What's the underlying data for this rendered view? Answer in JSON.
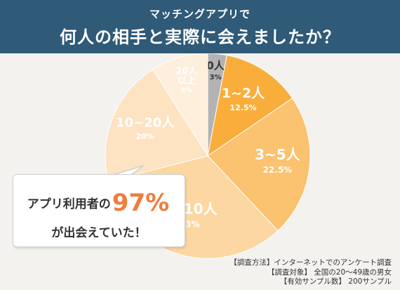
{
  "header": {
    "line1": "マッチングアプリで",
    "line2": "何人の相手と実際に会えましたか？"
  },
  "chart_data": {
    "type": "pie",
    "title": "何人の相手と実際に会えましたか？",
    "slices": [
      {
        "label": "0人",
        "value": 3,
        "pct_label": "3%",
        "color": "#b3b3b3",
        "text_color": "#333333"
      },
      {
        "label": "1~2人",
        "value": 12.5,
        "pct_label": "12.5%",
        "color": "#f9ae3c",
        "text_color": "#ffffff"
      },
      {
        "label": "3~5人",
        "value": 22.5,
        "pct_label": "22.5%",
        "color": "#fbc26f",
        "text_color": "#ffffff"
      },
      {
        "label": "6~10人",
        "value": 33,
        "pct_label": "33%",
        "color": "#fcd7a1",
        "text_color": "#ffffff"
      },
      {
        "label": "10~20人",
        "value": 20,
        "pct_label": "20%",
        "color": "#fde3c2",
        "text_color": "#ffffff"
      },
      {
        "label": "20人\n以上",
        "value": 9,
        "pct_label": "9%",
        "color": "#feeedc",
        "text_color": "#ffffff"
      }
    ]
  },
  "callout": {
    "prefix": "アプリ利用者の",
    "percent": "97%",
    "line2": "が出会えていた！"
  },
  "notes": [
    "【調査方法】インターネットでのアンケート調査",
    "【調査対象】 全国の20～49歳の男女",
    "【有効サンプル数】 200サンプル"
  ]
}
